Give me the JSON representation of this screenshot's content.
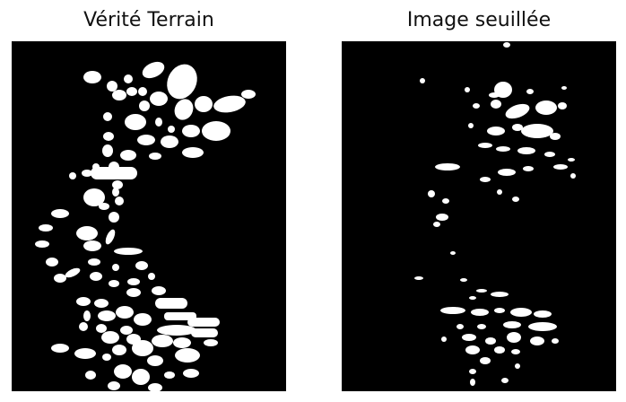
{
  "panels": [
    {
      "title": "Vérité Terrain",
      "kind": "ground-truth-mask"
    },
    {
      "title": "Image seuillée",
      "kind": "thresholded-image"
    }
  ],
  "colors": {
    "background": "#000000",
    "foreground": "#ffffff",
    "page": "#ffffff"
  }
}
